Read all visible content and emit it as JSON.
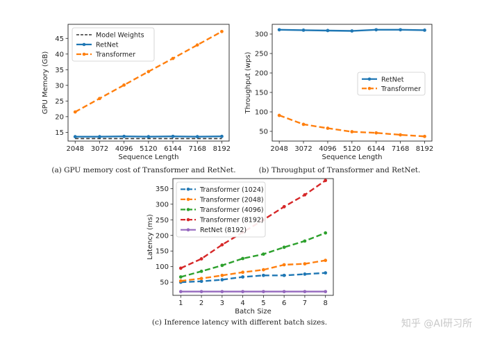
{
  "chart_data": [
    {
      "type": "line",
      "caption": "(a) GPU memory cost of Transformer and RetNet.",
      "xlabel": "Sequence Length",
      "ylabel": "GPU Memory (GB)",
      "x": [
        2048,
        3072,
        4096,
        5120,
        6144,
        7168,
        8192
      ],
      "xticks": [
        "2048",
        "3072",
        "4096",
        "5120",
        "6144",
        "7168",
        "8192"
      ],
      "yticks": [
        15,
        20,
        25,
        30,
        35,
        40,
        45
      ],
      "xlim": [
        1750,
        8500
      ],
      "ylim": [
        12.2,
        49.5
      ],
      "legend_position": "top-left",
      "series": [
        {
          "name": "Model Weights",
          "values": [
            13.0,
            13.0,
            13.0,
            13.0,
            13.0,
            13.0,
            13.0
          ],
          "color": "#333333",
          "style": "dashed-black",
          "markers": false
        },
        {
          "name": "RetNet",
          "values": [
            13.6,
            13.6,
            13.7,
            13.6,
            13.7,
            13.6,
            13.7
          ],
          "color": "#1f77b4",
          "style": "solid",
          "markers": true
        },
        {
          "name": "Transformer",
          "values": [
            21.5,
            25.8,
            30.1,
            34.4,
            38.6,
            42.9,
            47.2
          ],
          "color": "#ff7f0e",
          "style": "dashed",
          "markers": true
        }
      ]
    },
    {
      "type": "line",
      "caption": "(b) Throughput of Transformer and RetNet.",
      "xlabel": "Sequence Length",
      "ylabel": "Throughput (wps)",
      "x": [
        2048,
        3072,
        4096,
        5120,
        6144,
        7168,
        8192
      ],
      "xticks": [
        "2048",
        "3072",
        "4096",
        "5120",
        "6144",
        "7168",
        "8192"
      ],
      "yticks": [
        50,
        100,
        150,
        200,
        250,
        300
      ],
      "xlim": [
        1750,
        8500
      ],
      "ylim": [
        25,
        325
      ],
      "legend_position": "center-right",
      "series": [
        {
          "name": "RetNet",
          "values": [
            311,
            310,
            309,
            308,
            311,
            311,
            310
          ],
          "color": "#1f77b4",
          "style": "solid",
          "markers": true
        },
        {
          "name": "Transformer",
          "values": [
            91,
            68,
            58,
            49,
            46,
            41,
            37
          ],
          "color": "#ff7f0e",
          "style": "dashed",
          "markers": true
        }
      ]
    },
    {
      "type": "line",
      "caption": "(c) Inference latency with different batch sizes.",
      "xlabel": "Batch Size",
      "ylabel": "Latency (ms)",
      "x": [
        1,
        2,
        3,
        4,
        5,
        6,
        7,
        8
      ],
      "xticks": [
        "1",
        "2",
        "3",
        "4",
        "5",
        "6",
        "7",
        "8"
      ],
      "yticks": [
        50,
        100,
        150,
        200,
        250,
        300,
        350
      ],
      "xlim": [
        0.62,
        8.38
      ],
      "ylim": [
        8,
        382
      ],
      "legend_position": "top-left",
      "series": [
        {
          "name": "Transformer (1024)",
          "values": [
            50,
            53,
            58,
            67,
            72,
            72,
            76,
            80
          ],
          "color": "#1f77b4",
          "style": "dashed",
          "markers": true
        },
        {
          "name": "Transformer (2048)",
          "values": [
            54,
            62,
            72,
            82,
            90,
            106,
            109,
            120
          ],
          "color": "#ff7f0e",
          "style": "dashed",
          "markers": true
        },
        {
          "name": "Transformer (4096)",
          "values": [
            67,
            85,
            104,
            126,
            140,
            162,
            182,
            208
          ],
          "color": "#2ca02c",
          "style": "dashed",
          "markers": true
        },
        {
          "name": "Transformer (8192)",
          "values": [
            95,
            125,
            170,
            210,
            250,
            292,
            330,
            376
          ],
          "color": "#d62728",
          "style": "dashed",
          "markers": true
        },
        {
          "name": "RetNet (8192)",
          "values": [
            20,
            20,
            20,
            20,
            20,
            20,
            20,
            20
          ],
          "color": "#9467bd",
          "style": "solid",
          "markers": true
        }
      ]
    }
  ],
  "watermark": "知乎 @AI研习所"
}
